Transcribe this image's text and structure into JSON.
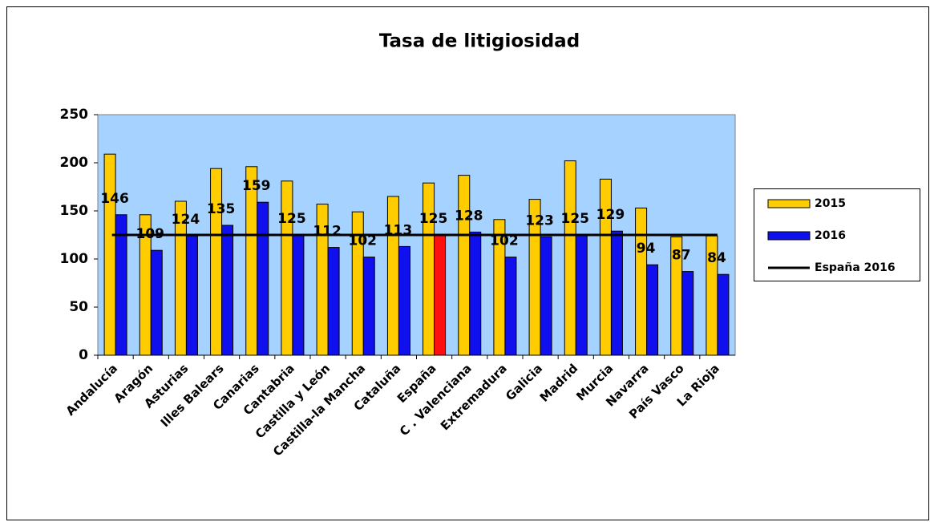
{
  "chart_data": {
    "type": "bar",
    "title": "Tasa de litigiosidad",
    "categories": [
      "Andalucía",
      "Aragón",
      "Asturias",
      "Illes Balears",
      "Canarias",
      "Cantabria",
      "Castilla y León",
      "Castilla-la Mancha",
      "Cataluña",
      "España",
      "C . Valenciana",
      "Extremadura",
      "Galicia",
      "Madrid",
      "Murcia",
      "Navarra",
      "País Vasco",
      "La Rioja"
    ],
    "series": [
      {
        "name": "2015",
        "color": "#ffcc00",
        "values": [
          209,
          146,
          160,
          194,
          196,
          181,
          157,
          149,
          165,
          179,
          187,
          141,
          162,
          202,
          183,
          153,
          123,
          124
        ]
      },
      {
        "name": "2016",
        "color": "#1010ee",
        "point_colors": [
          "#1010ee",
          "#1010ee",
          "#1010ee",
          "#1010ee",
          "#1010ee",
          "#1010ee",
          "#1010ee",
          "#1010ee",
          "#1010ee",
          "#ff1010",
          "#1010ee",
          "#1010ee",
          "#1010ee",
          "#1010ee",
          "#1010ee",
          "#1010ee",
          "#1010ee",
          "#1010ee"
        ],
        "values": [
          146,
          109,
          124,
          135,
          159,
          125,
          112,
          102,
          113,
          125,
          128,
          102,
          123,
          125,
          129,
          94,
          87,
          84
        ],
        "show_value_labels": true
      }
    ],
    "reference_lines": [
      {
        "name": "España 2016",
        "value": 125,
        "color": "#000000"
      }
    ],
    "ylim": [
      0,
      250
    ],
    "yticks": [
      0,
      50,
      100,
      150,
      200,
      250
    ],
    "grid": false,
    "legend": "right",
    "plot_background": "#a6d2ff"
  }
}
